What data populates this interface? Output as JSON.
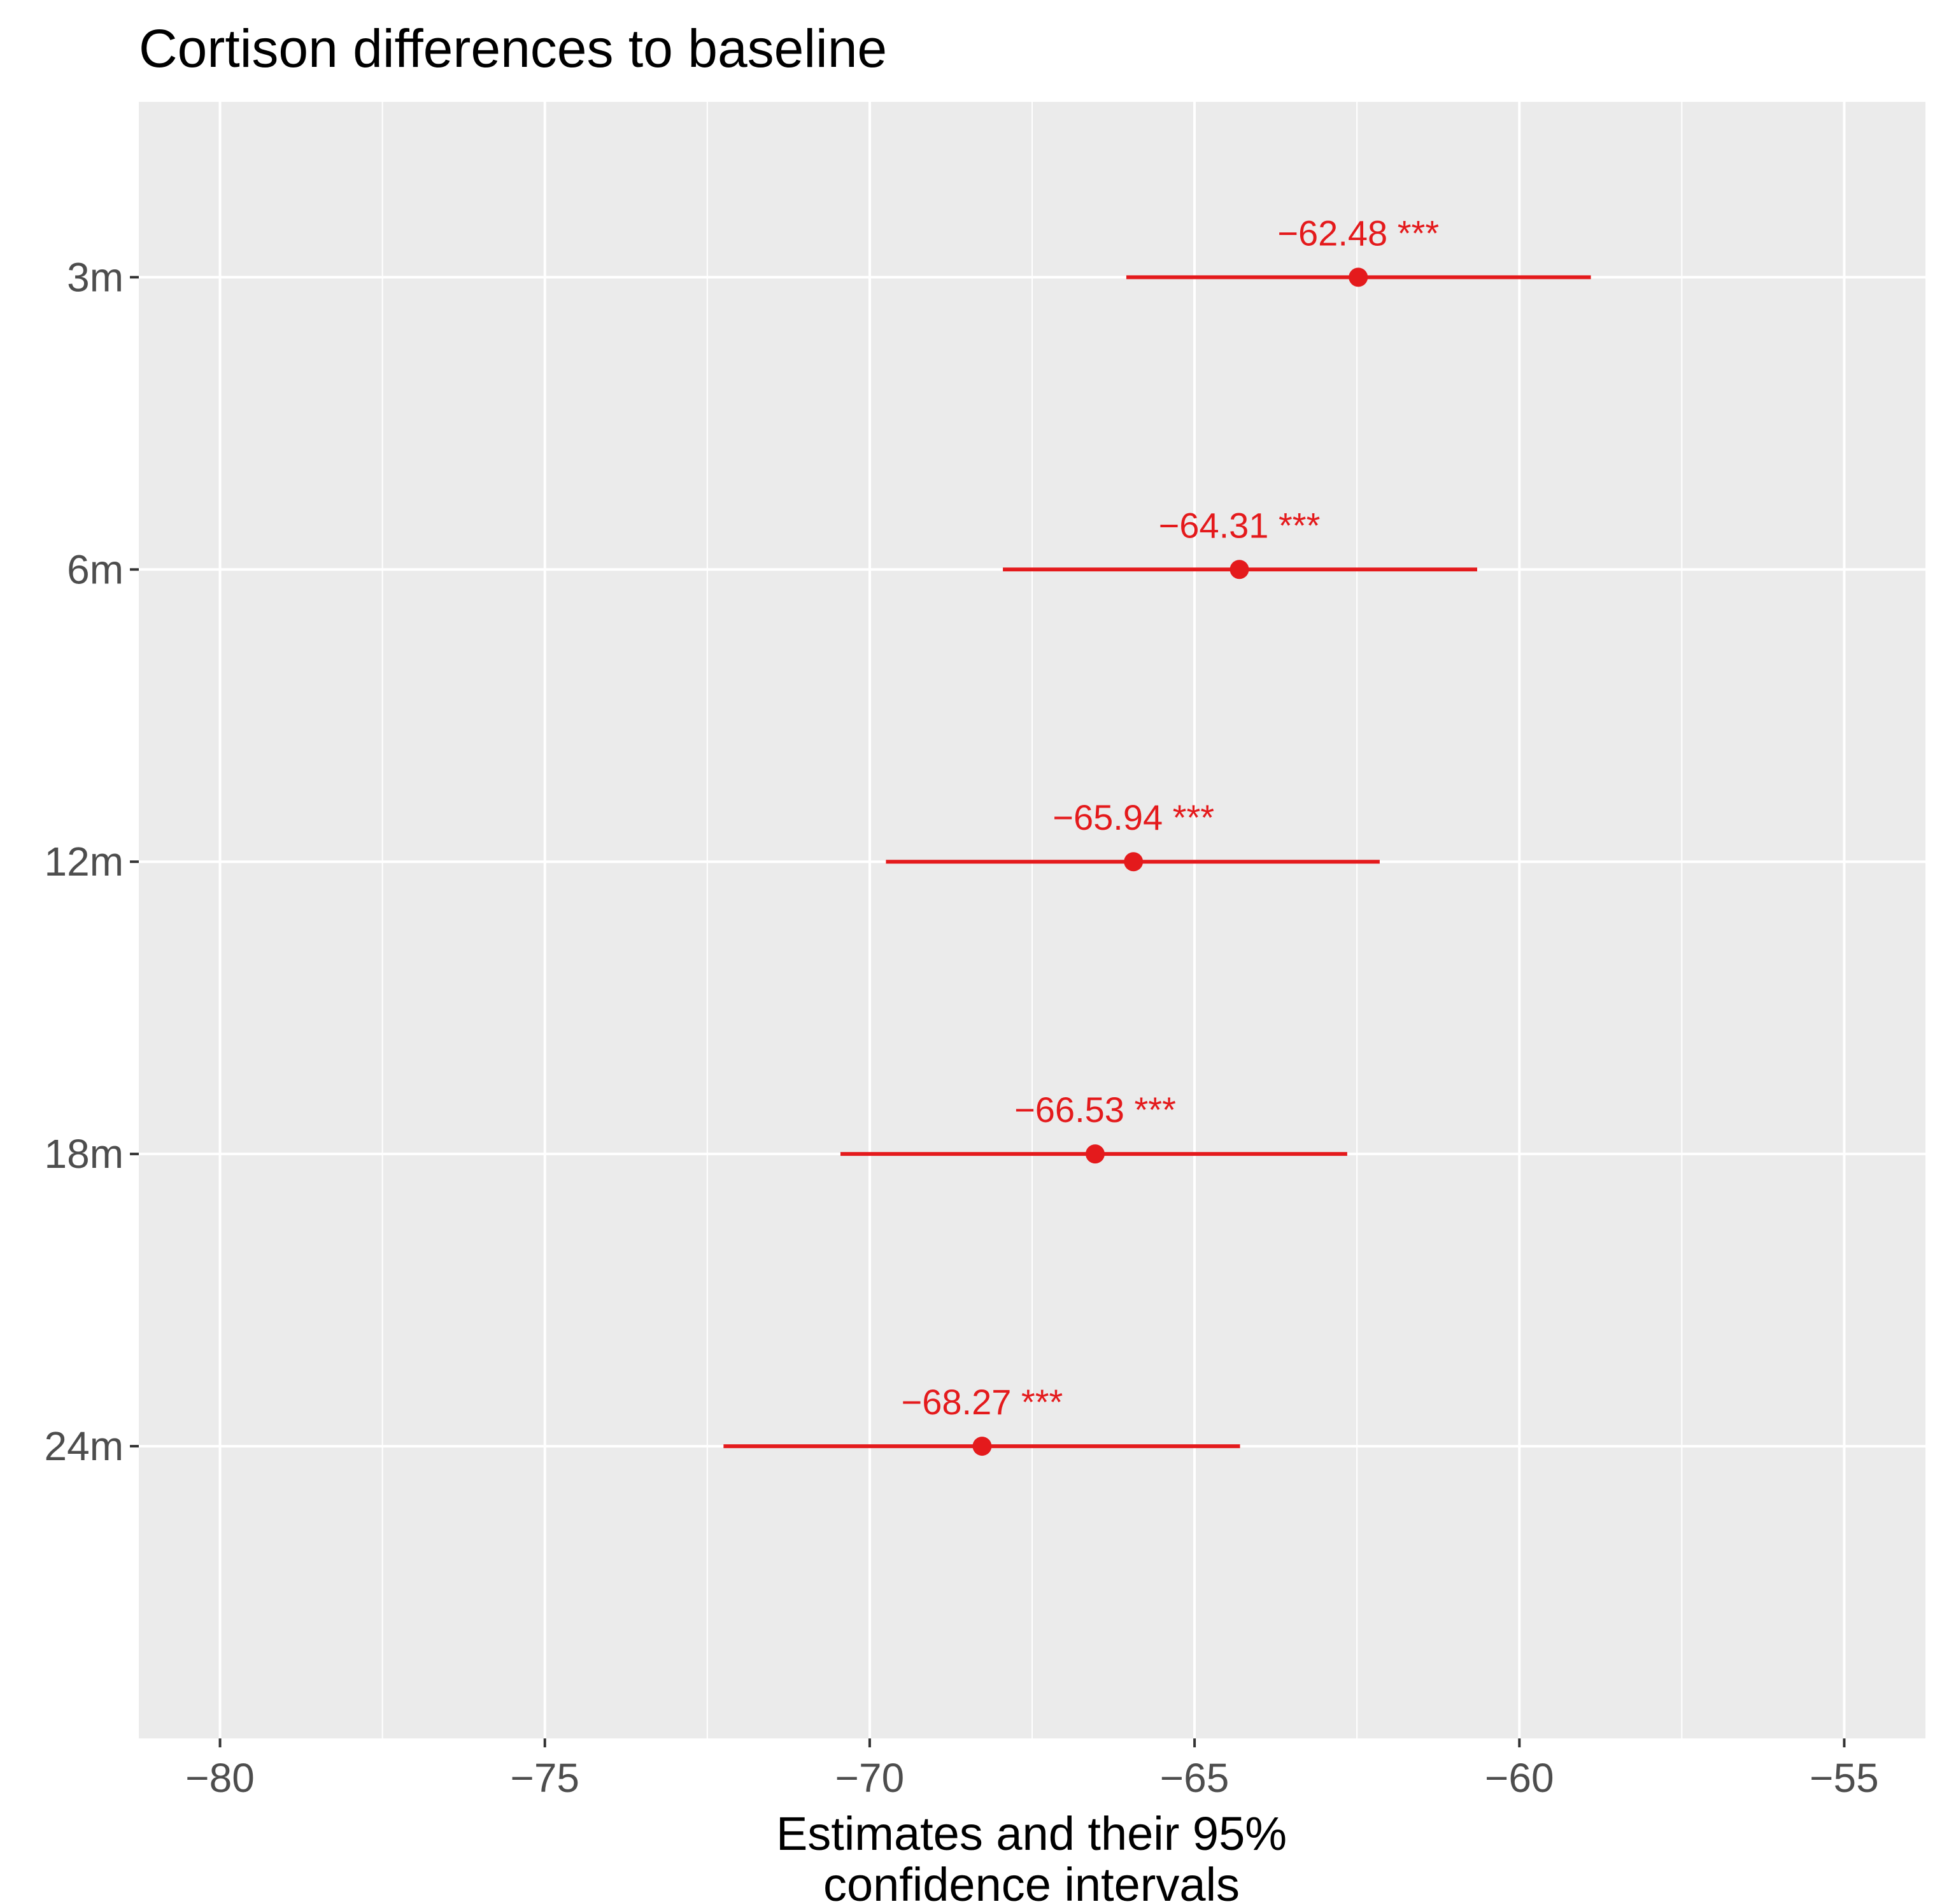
{
  "chart_data": {
    "type": "scatter",
    "subtype": "forest-plot",
    "title": "Cortison differences to baseline",
    "xlabel_lines": [
      "Estimates and their 95%",
      "confidence intervals"
    ],
    "ylabel": "",
    "xlim": [
      -81.25,
      -53.75
    ],
    "x_ticks": [
      -80,
      -75,
      -70,
      -65,
      -60,
      -55
    ],
    "x_tick_labels": [
      "−80",
      "−75",
      "−70",
      "−65",
      "−60",
      "−55"
    ],
    "categories": [
      "3m",
      "6m",
      "12m",
      "18m",
      "24m"
    ],
    "estimates": [
      -62.48,
      -64.31,
      -65.94,
      -66.53,
      -68.27
    ],
    "ci_lower": [
      -66.05,
      -67.95,
      -69.75,
      -70.45,
      -72.25
    ],
    "ci_upper": [
      -58.9,
      -60.65,
      -62.15,
      -62.65,
      -64.3
    ],
    "labels": [
      "−62.48 ***",
      "−64.31 ***",
      "−65.94 ***",
      "−66.53 ***",
      "−68.27 ***"
    ],
    "grid": true,
    "colors": {
      "series": "#e41a1c",
      "panel": "#ebebeb",
      "grid": "#ffffff",
      "axis_text": "#4d4d4d",
      "tick": "#333333"
    }
  }
}
